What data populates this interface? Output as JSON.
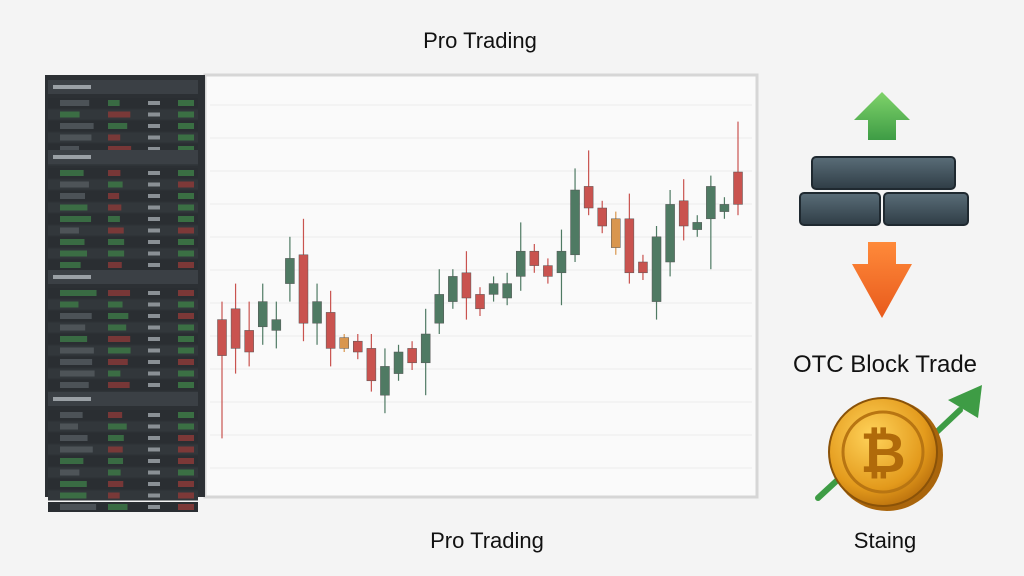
{
  "header": {
    "title": "Pro Trading"
  },
  "chart": {
    "type": "candlestick",
    "ylim": [
      0,
      100
    ],
    "up_color": "#4f7a63",
    "down_color": "#c9534f",
    "candles": [
      {
        "o": 39,
        "h": 44,
        "l": 6,
        "c": 29
      },
      {
        "o": 42,
        "h": 49,
        "l": 24,
        "c": 31
      },
      {
        "o": 36,
        "h": 44,
        "l": 26,
        "c": 30
      },
      {
        "o": 37,
        "h": 49,
        "l": 32,
        "c": 44
      },
      {
        "o": 36,
        "h": 44,
        "l": 31,
        "c": 39
      },
      {
        "o": 49,
        "h": 62,
        "l": 44,
        "c": 56
      },
      {
        "o": 57,
        "h": 67,
        "l": 33,
        "c": 38
      },
      {
        "o": 38,
        "h": 49,
        "l": 32,
        "c": 44
      },
      {
        "o": 41,
        "h": 47,
        "l": 26,
        "c": 31
      },
      {
        "o": 34,
        "h": 35,
        "l": 30,
        "c": 31,
        "color": "#d9964e"
      },
      {
        "o": 33,
        "h": 35,
        "l": 28,
        "c": 30
      },
      {
        "o": 31,
        "h": 35,
        "l": 19,
        "c": 22
      },
      {
        "o": 18,
        "h": 31,
        "l": 13,
        "c": 26
      },
      {
        "o": 24,
        "h": 32,
        "l": 22,
        "c": 30
      },
      {
        "o": 31,
        "h": 33,
        "l": 25,
        "c": 27
      },
      {
        "o": 27,
        "h": 42,
        "l": 18,
        "c": 35
      },
      {
        "o": 38,
        "h": 53,
        "l": 35,
        "c": 46
      },
      {
        "o": 44,
        "h": 53,
        "l": 42,
        "c": 51
      },
      {
        "o": 52,
        "h": 58,
        "l": 39,
        "c": 45
      },
      {
        "o": 46,
        "h": 48,
        "l": 40,
        "c": 42
      },
      {
        "o": 46,
        "h": 51,
        "l": 44,
        "c": 49
      },
      {
        "o": 45,
        "h": 52,
        "l": 43,
        "c": 49
      },
      {
        "o": 51,
        "h": 66,
        "l": 47,
        "c": 58
      },
      {
        "o": 58,
        "h": 60,
        "l": 52,
        "c": 54
      },
      {
        "o": 54,
        "h": 56,
        "l": 49,
        "c": 51
      },
      {
        "o": 52,
        "h": 64,
        "l": 43,
        "c": 58
      },
      {
        "o": 57,
        "h": 81,
        "l": 55,
        "c": 75
      },
      {
        "o": 76,
        "h": 86,
        "l": 68,
        "c": 70
      },
      {
        "o": 70,
        "h": 72,
        "l": 63,
        "c": 65
      },
      {
        "o": 67,
        "h": 69,
        "l": 57,
        "c": 59,
        "color": "#d9964e"
      },
      {
        "o": 67,
        "h": 74,
        "l": 49,
        "c": 52
      },
      {
        "o": 55,
        "h": 57,
        "l": 50,
        "c": 52
      },
      {
        "o": 44,
        "h": 65,
        "l": 39,
        "c": 62
      },
      {
        "o": 55,
        "h": 75,
        "l": 51,
        "c": 71
      },
      {
        "o": 72,
        "h": 78,
        "l": 61,
        "c": 65
      },
      {
        "o": 64,
        "h": 68,
        "l": 62,
        "c": 66
      },
      {
        "o": 67,
        "h": 79,
        "l": 53,
        "c": 76
      },
      {
        "o": 69,
        "h": 73,
        "l": 67,
        "c": 71
      },
      {
        "o": 80,
        "h": 94,
        "l": 68,
        "c": 71
      }
    ]
  },
  "chart_caption": "Pro Trading",
  "side": {
    "otc_label": "OTC Block Trade",
    "staking_label": "Staing"
  }
}
